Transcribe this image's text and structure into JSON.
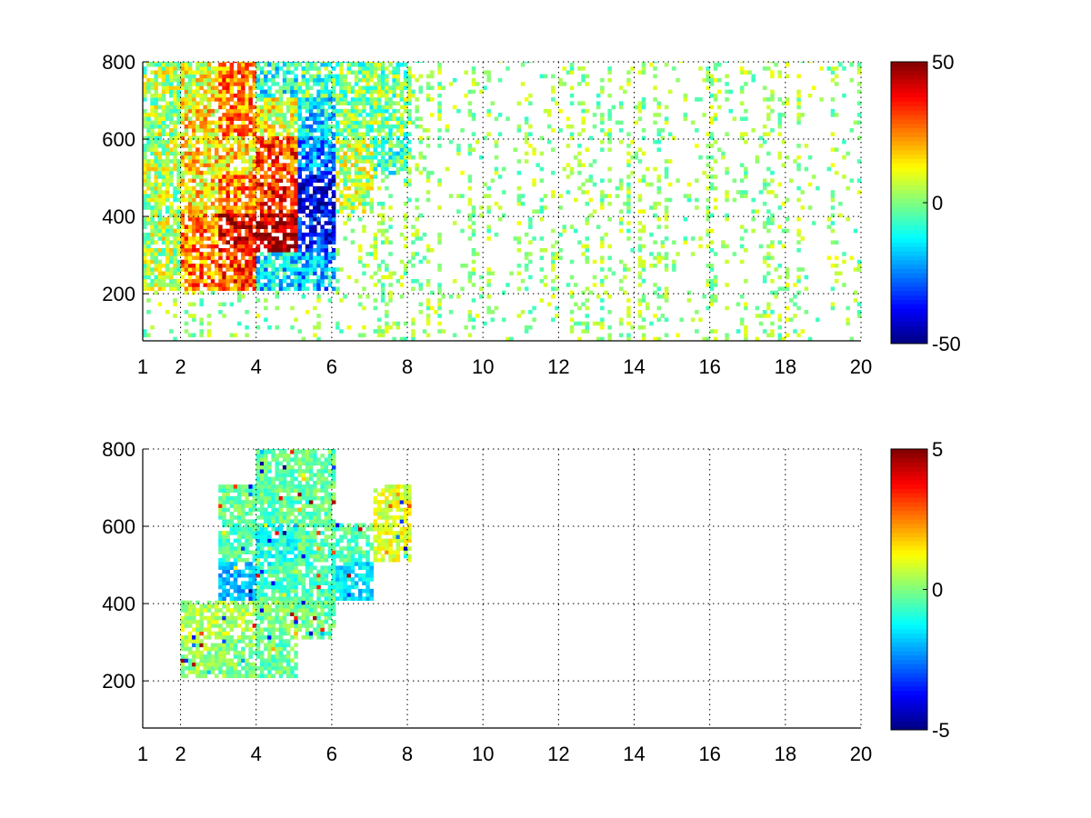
{
  "chart_data": [
    {
      "type": "heatmap",
      "title": "",
      "xlabel": "",
      "ylabel": "",
      "xlim": [
        1,
        20
      ],
      "ylim": [
        78,
        800
      ],
      "xticks": [
        "1",
        "2",
        "4",
        "6",
        "8",
        "10",
        "12",
        "14",
        "16",
        "18",
        "20"
      ],
      "xtick_values": [
        1,
        2,
        4,
        6,
        8,
        10,
        12,
        14,
        16,
        18,
        20
      ],
      "yticks": [
        "200",
        "400",
        "600",
        "800"
      ],
      "ytick_values": [
        200,
        400,
        600,
        800
      ],
      "grid": true,
      "colormap": "jet",
      "clim": [
        -50,
        50
      ],
      "colorbar_ticks": [
        "50",
        "0",
        "-50"
      ],
      "colorbar_tick_values": [
        50,
        0,
        -50
      ],
      "grid_x_bins": [
        1,
        2,
        3,
        4,
        5,
        6,
        7,
        8,
        9,
        10,
        11,
        12,
        13,
        14,
        15,
        16,
        17,
        18,
        19,
        20
      ],
      "grid_y_bins": [
        800,
        700,
        600,
        500,
        400,
        300,
        200,
        100,
        78
      ],
      "values": [
        [
          5,
          10,
          25,
          -10,
          -5,
          0,
          0,
          null,
          null,
          null,
          null,
          null,
          null,
          null,
          null,
          null,
          null,
          null,
          null
        ],
        [
          5,
          15,
          25,
          10,
          -15,
          0,
          0,
          null,
          null,
          null,
          null,
          null,
          null,
          null,
          null,
          null,
          null,
          null,
          null
        ],
        [
          5,
          15,
          15,
          30,
          -25,
          5,
          -5,
          null,
          null,
          null,
          null,
          null,
          null,
          null,
          null,
          null,
          null,
          null,
          null
        ],
        [
          5,
          15,
          25,
          35,
          -40,
          5,
          null,
          null,
          null,
          null,
          null,
          null,
          null,
          null,
          null,
          null,
          null,
          null,
          null
        ],
        [
          5,
          25,
          40,
          45,
          -35,
          null,
          null,
          null,
          null,
          null,
          null,
          null,
          null,
          null,
          null,
          null,
          null,
          null,
          null
        ],
        [
          5,
          25,
          30,
          -15,
          -20,
          null,
          null,
          null,
          null,
          null,
          null,
          null,
          null,
          null,
          null,
          null,
          null,
          null,
          null
        ],
        [
          null,
          null,
          null,
          null,
          null,
          null,
          null,
          null,
          null,
          null,
          null,
          null,
          null,
          null,
          null,
          null,
          null,
          null,
          null
        ],
        [
          null,
          null,
          null,
          null,
          null,
          null,
          null,
          null,
          null,
          null,
          null,
          null,
          null,
          null,
          null,
          null,
          null,
          null,
          null
        ]
      ],
      "sparse_background": {
        "value_range": [
          -8,
          12
        ],
        "fill_fraction": 0.12
      }
    },
    {
      "type": "heatmap",
      "title": "",
      "xlabel": "",
      "ylabel": "",
      "xlim": [
        1,
        20
      ],
      "ylim": [
        78,
        800
      ],
      "xticks": [
        "1",
        "2",
        "4",
        "6",
        "8",
        "10",
        "12",
        "14",
        "16",
        "18",
        "20"
      ],
      "xtick_values": [
        1,
        2,
        4,
        6,
        8,
        10,
        12,
        14,
        16,
        18,
        20
      ],
      "yticks": [
        "200",
        "400",
        "600",
        "800"
      ],
      "ytick_values": [
        200,
        400,
        600,
        800
      ],
      "grid": true,
      "colormap": "jet",
      "clim": [
        -5,
        5
      ],
      "colorbar_ticks": [
        "5",
        "0",
        "-5"
      ],
      "colorbar_tick_values": [
        5,
        0,
        -5
      ],
      "grid_x_bins": [
        1,
        2,
        3,
        4,
        5,
        6,
        7,
        8,
        9,
        10,
        11,
        12,
        13,
        14,
        15,
        16,
        17,
        18,
        19,
        20
      ],
      "grid_y_bins": [
        800,
        700,
        600,
        500,
        400,
        300,
        200,
        100,
        78
      ],
      "values": [
        [
          null,
          null,
          null,
          -0.3,
          -0.2,
          null,
          null,
          null,
          null,
          null,
          null,
          null,
          null,
          null,
          null,
          null,
          null,
          null,
          null
        ],
        [
          null,
          null,
          -0.2,
          -0.3,
          -0.3,
          null,
          1,
          null,
          null,
          null,
          null,
          null,
          null,
          null,
          null,
          null,
          null,
          null,
          null
        ],
        [
          null,
          null,
          -0.5,
          -1,
          -0.4,
          -0.5,
          1,
          null,
          null,
          null,
          null,
          null,
          null,
          null,
          null,
          null,
          null,
          null,
          null
        ],
        [
          null,
          null,
          -2,
          -0.5,
          -0.5,
          -1.5,
          null,
          null,
          null,
          null,
          null,
          null,
          null,
          null,
          null,
          null,
          null,
          null,
          null
        ],
        [
          null,
          0.5,
          0.5,
          0,
          -0.3,
          null,
          null,
          null,
          null,
          null,
          null,
          null,
          null,
          null,
          null,
          null,
          null,
          null,
          null
        ],
        [
          null,
          0.2,
          0,
          -0.2,
          null,
          null,
          null,
          null,
          null,
          null,
          null,
          null,
          null,
          null,
          null,
          null,
          null,
          null,
          null
        ],
        [
          null,
          null,
          null,
          null,
          null,
          null,
          null,
          null,
          null,
          null,
          null,
          null,
          null,
          null,
          null,
          null,
          null,
          null,
          null
        ],
        [
          null,
          null,
          null,
          null,
          null,
          null,
          null,
          null,
          null,
          null,
          null,
          null,
          null,
          null,
          null,
          null,
          null,
          null,
          null
        ]
      ],
      "sparse_background": {
        "value_range": [
          -5,
          5
        ],
        "fill_fraction": 0.0
      }
    }
  ]
}
